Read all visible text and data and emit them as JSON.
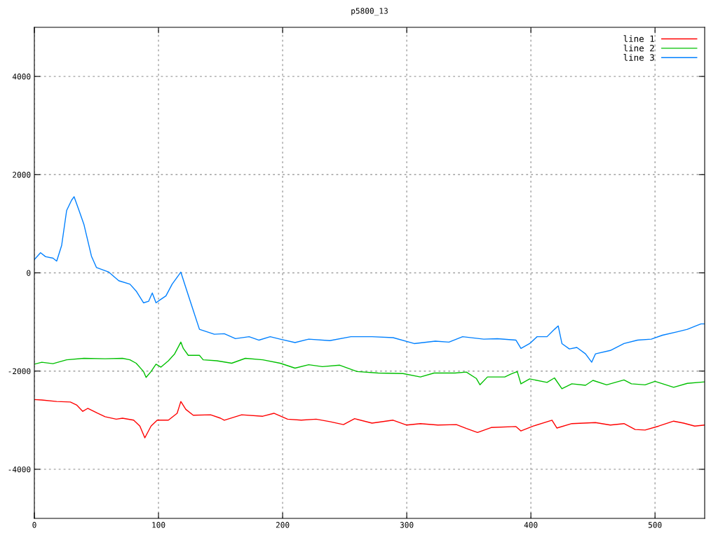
{
  "chart_data": {
    "type": "line",
    "title": "p5800_13",
    "xlim": [
      0,
      540
    ],
    "ylim": [
      -5000,
      5000
    ],
    "xticks": [
      0,
      100,
      200,
      300,
      400,
      500
    ],
    "yticks": [
      -4000,
      -2000,
      0,
      2000,
      4000
    ],
    "grid": true,
    "legend": "top right",
    "line_style": "solid",
    "marker": "none",
    "series": [
      {
        "name": "line 1",
        "color": "#ff0000",
        "x": [
          0,
          6,
          18,
          29,
          34,
          39,
          43,
          51,
          57,
          66,
          71,
          80,
          85,
          89,
          94,
          99,
          108,
          115,
          118,
          122,
          128,
          142,
          150,
          153,
          167,
          184,
          193,
          204,
          215,
          227,
          238,
          249,
          258,
          272,
          289,
          300,
          311,
          325,
          340,
          348,
          357,
          368,
          388,
          392,
          402,
          417,
          421,
          433,
          452,
          464,
          475,
          484,
          492,
          503,
          515,
          523,
          532,
          540
        ],
        "values": [
          -2580,
          -2590,
          -2620,
          -2630,
          -2690,
          -2820,
          -2760,
          -2860,
          -2930,
          -2980,
          -2960,
          -3000,
          -3120,
          -3360,
          -3120,
          -3000,
          -3000,
          -2860,
          -2620,
          -2780,
          -2900,
          -2890,
          -2960,
          -3000,
          -2890,
          -2920,
          -2860,
          -2980,
          -3000,
          -2980,
          -3030,
          -3090,
          -2970,
          -3060,
          -3000,
          -3100,
          -3070,
          -3100,
          -3090,
          -3170,
          -3250,
          -3150,
          -3130,
          -3220,
          -3120,
          -3000,
          -3160,
          -3070,
          -3050,
          -3100,
          -3070,
          -3190,
          -3200,
          -3120,
          -3020,
          -3060,
          -3120,
          -3100
        ]
      },
      {
        "name": "line 2",
        "color": "#00c000",
        "x": [
          0,
          6,
          15,
          26,
          40,
          57,
          71,
          77,
          82,
          88,
          90,
          94,
          98,
          102,
          108,
          113,
          118,
          120,
          124,
          133,
          136,
          147,
          159,
          170,
          184,
          198,
          210,
          221,
          232,
          246,
          260,
          277,
          297,
          311,
          322,
          339,
          348,
          356,
          359,
          365,
          379,
          384,
          389,
          392,
          399,
          413,
          419,
          425,
          433,
          444,
          450,
          461,
          475,
          481,
          492,
          500,
          515,
          526,
          540
        ],
        "values": [
          -1860,
          -1820,
          -1850,
          -1770,
          -1740,
          -1750,
          -1740,
          -1770,
          -1840,
          -2010,
          -2130,
          -2010,
          -1860,
          -1920,
          -1790,
          -1650,
          -1410,
          -1540,
          -1680,
          -1680,
          -1770,
          -1790,
          -1840,
          -1740,
          -1770,
          -1840,
          -1940,
          -1870,
          -1910,
          -1880,
          -2010,
          -2040,
          -2050,
          -2120,
          -2040,
          -2040,
          -2020,
          -2150,
          -2280,
          -2120,
          -2120,
          -2060,
          -2010,
          -2260,
          -2160,
          -2230,
          -2140,
          -2360,
          -2260,
          -2290,
          -2190,
          -2280,
          -2180,
          -2260,
          -2280,
          -2210,
          -2330,
          -2250,
          -2220
        ]
      },
      {
        "name": "line 3",
        "color": "#0080ff",
        "x": [
          0,
          5,
          9,
          15,
          18,
          22,
          26,
          30,
          32,
          36,
          40,
          46,
          50,
          60,
          68,
          77,
          82,
          88,
          92,
          95,
          98,
          101,
          106,
          111,
          118,
          122,
          126,
          133,
          145,
          153,
          162,
          173,
          181,
          190,
          198,
          210,
          221,
          238,
          255,
          272,
          289,
          306,
          323,
          334,
          345,
          362,
          373,
          388,
          392,
          399,
          405,
          413,
          419,
          422,
          425,
          431,
          437,
          444,
          449,
          452,
          464,
          475,
          486,
          497,
          506,
          518,
          526,
          533,
          537,
          540
        ],
        "values": [
          270,
          410,
          330,
          300,
          240,
          560,
          1270,
          1480,
          1550,
          1270,
          980,
          340,
          110,
          15,
          -160,
          -230,
          -370,
          -610,
          -580,
          -410,
          -610,
          -555,
          -470,
          -230,
          15,
          -300,
          -610,
          -1150,
          -1250,
          -1240,
          -1340,
          -1300,
          -1370,
          -1300,
          -1350,
          -1420,
          -1350,
          -1380,
          -1300,
          -1300,
          -1320,
          -1440,
          -1390,
          -1410,
          -1300,
          -1350,
          -1340,
          -1370,
          -1540,
          -1440,
          -1300,
          -1300,
          -1150,
          -1080,
          -1440,
          -1550,
          -1520,
          -1650,
          -1820,
          -1650,
          -1580,
          -1440,
          -1370,
          -1350,
          -1270,
          -1200,
          -1150,
          -1080,
          -1040,
          -1040
        ]
      }
    ]
  }
}
